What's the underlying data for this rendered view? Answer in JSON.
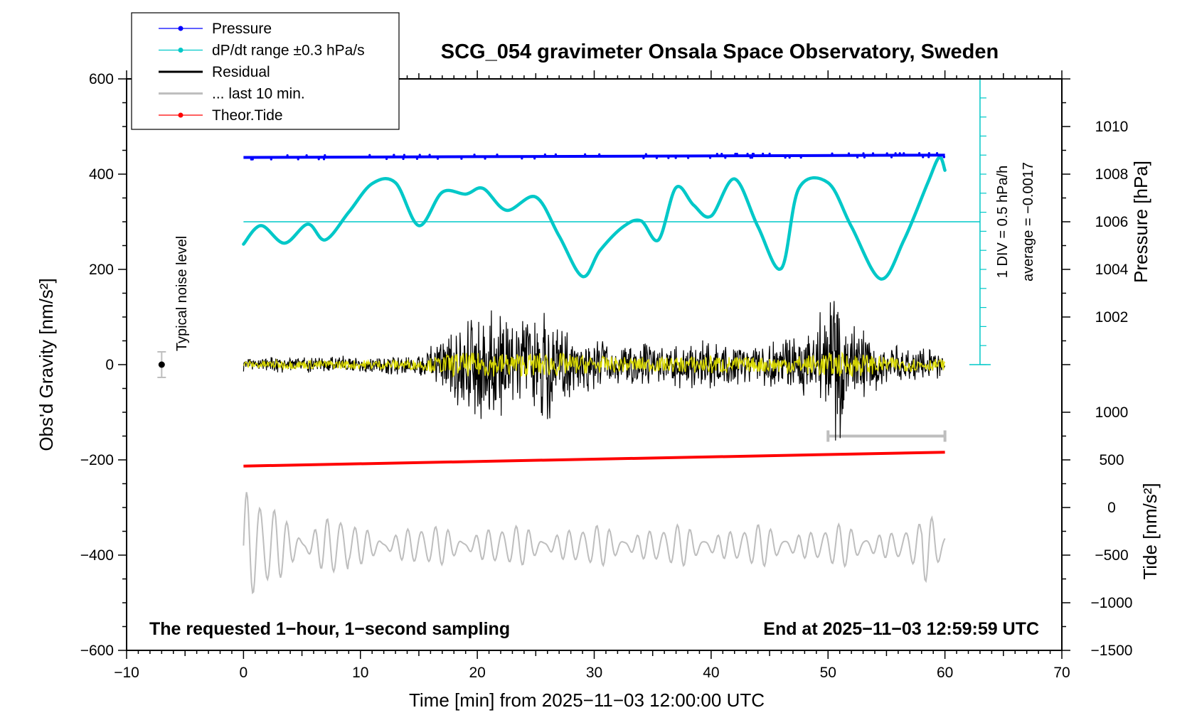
{
  "chart_data": {
    "type": "line",
    "title": "SCG_054 gravimeter Onsala Space Observatory, Sweden",
    "xlabel": "Time [min] from 2025−11−03 12:00:00 UTC",
    "xlim": [
      -10,
      70
    ],
    "x_ticks": [
      -10,
      0,
      10,
      20,
      30,
      40,
      50,
      60,
      70
    ],
    "x_tick_labels": [
      "−10",
      "0",
      "10",
      "20",
      "30",
      "40",
      "50",
      "60",
      "70"
    ],
    "left_axis": {
      "label": "Obs'd Gravity [nm/s²]",
      "ylim": [
        -600,
        600
      ],
      "ticks": [
        -600,
        -400,
        -200,
        0,
        200,
        400,
        600
      ],
      "tick_labels": [
        "−600",
        "−400",
        "−200",
        "0",
        "200",
        "400",
        "600"
      ]
    },
    "pressure_axis": {
      "label": "Pressure [hPa]",
      "range": [
        1000,
        1012
      ],
      "ticks": [
        1002,
        1004,
        1006,
        1008,
        1010
      ],
      "tick_labels": [
        "1002",
        "1004",
        "1006",
        "1008",
        "1010"
      ]
    },
    "tide_axis": {
      "label": "Tide [nm/s²]",
      "range": [
        -1500,
        1000
      ],
      "ticks": [
        -1500,
        -1000,
        -500,
        0,
        500,
        1000
      ],
      "tick_labels": [
        "−1500",
        "−1000",
        "−500",
        "0",
        "500",
        "1000"
      ]
    },
    "legend": {
      "placement": "top-left",
      "entries": [
        {
          "label": "Pressure",
          "color": "#0000ff",
          "marker": true
        },
        {
          "label": "dP/dt range ±0.3 hPa/s",
          "color": "#00c8c8",
          "marker": true
        },
        {
          "label": "Residual",
          "color": "#000000",
          "marker": false
        },
        {
          "label": "... last 10 min.",
          "color": "#bebebe",
          "marker": false
        },
        {
          "label": "Theor.Tide",
          "color": "#ff0000",
          "marker": true
        }
      ]
    },
    "series": [
      {
        "name": "Pressure",
        "axis": "pressure",
        "color": "#0000ff",
        "x": [
          0,
          60
        ],
        "values": [
          1008.7,
          1008.8
        ]
      },
      {
        "name": "dP/dt range ±0.3 hPa/s",
        "axis": "gravity_display",
        "color": "#00c8c8",
        "x": [
          0,
          1.5,
          3.5,
          5.5,
          7,
          9,
          11,
          13,
          15,
          17,
          19,
          20.5,
          22.5,
          25,
          27,
          29,
          30.5,
          32.5,
          34,
          35.5,
          37,
          38.5,
          40,
          42,
          44,
          46,
          47.5,
          50,
          52,
          54.5,
          56.5,
          58.5,
          59.5,
          60
        ],
        "values": [
          253,
          292,
          255,
          295,
          262,
          320,
          380,
          382,
          292,
          362,
          358,
          370,
          324,
          352,
          270,
          185,
          240,
          290,
          302,
          262,
          372,
          335,
          312,
          390,
          290,
          202,
          370,
          382,
          290,
          180,
          262,
          380,
          435,
          408
        ]
      },
      {
        "name": "Residual",
        "axis": "gravity",
        "color": "#000000",
        "x_range": [
          0,
          60
        ],
        "amplitude_envelope": {
          "x": [
            0,
            15,
            17,
            19.5,
            21.5,
            23,
            25.5,
            28,
            31,
            36,
            40,
            43,
            49,
            50.2,
            51.5,
            55,
            60
          ],
          "values": [
            15,
            25,
            60,
            140,
            130,
            110,
            130,
            70,
            55,
            45,
            70,
            45,
            75,
            270,
            110,
            50,
            30
          ]
        }
      },
      {
        "name": "... last 10 min.",
        "axis": "gravity",
        "color": "#bebebe",
        "x_range": [
          0,
          60
        ],
        "values_offset": -380
      },
      {
        "name": "Theor.Tide",
        "axis": "gravity",
        "color": "#ff0000",
        "x": [
          0,
          60
        ],
        "values": [
          -213,
          -184
        ]
      }
    ],
    "reference_lines": [
      {
        "axis": "gravity_display",
        "y": 300,
        "color": "#00c8c8",
        "x_range": [
          0,
          63
        ]
      }
    ],
    "scale_bar": {
      "text_lines": [
        "1 DIV = 0.5 hPa/h",
        "average = −0.0017"
      ],
      "color": "#00c8c8"
    },
    "noise_indicator": {
      "label": "Typical noise level",
      "x": -7,
      "y": 0
    },
    "notes": {
      "left": "The requested 1−hour, 1−second sampling",
      "right": "End at 2025−11−03 12:59:59 UTC"
    }
  }
}
